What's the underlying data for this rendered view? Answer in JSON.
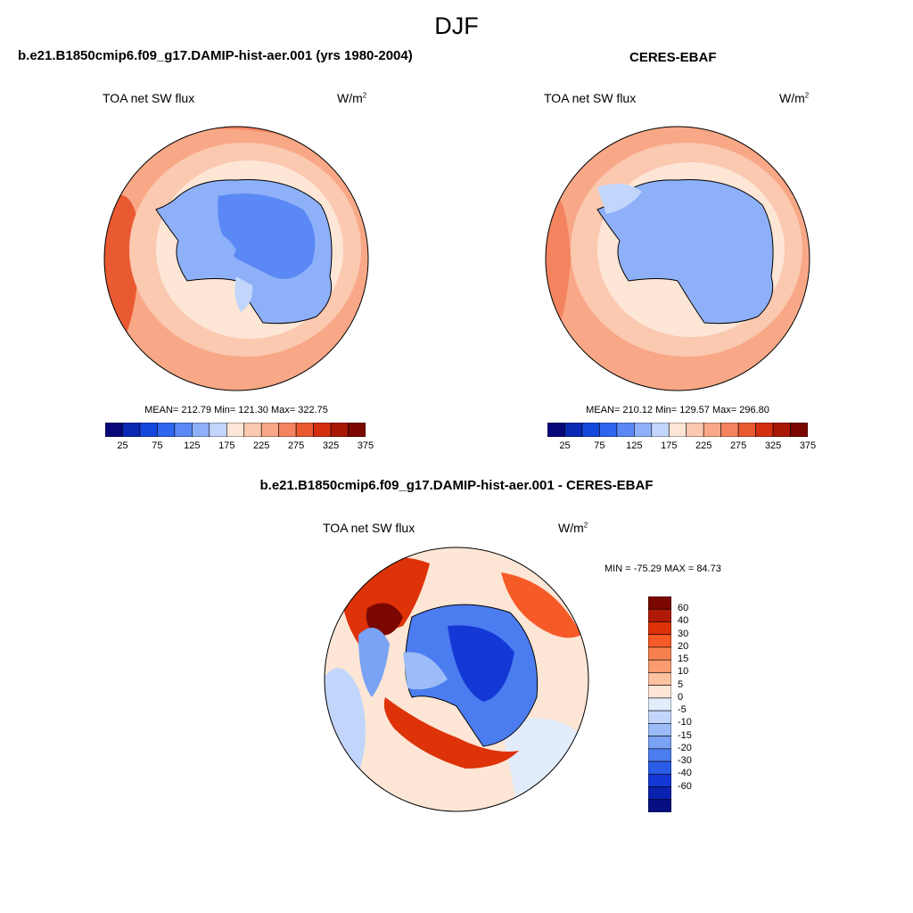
{
  "figure_title": "DJF",
  "panels": [
    {
      "title": "b.e21.B1850cmip6.f09_g17.DAMIP-hist-aer.001 (yrs 1980-2004)",
      "field_label": "TOA net SW flux",
      "units": "W/m",
      "units_exp": "2",
      "stats_text": "MEAN= 212.79  Min= 121.30  Max= 322.75"
    },
    {
      "title": "CERES-EBAF",
      "field_label": "TOA net SW flux",
      "units": "W/m",
      "units_exp": "2",
      "stats_text": "MEAN= 210.12  Min= 129.57  Max= 296.80"
    }
  ],
  "abs_colorbar": {
    "colors": [
      "#08087a",
      "#0b28b4",
      "#1448dc",
      "#2f66f0",
      "#5a88f5",
      "#8eb0f8",
      "#c2d6fb",
      "#fde6d6",
      "#fbc8b0",
      "#f8a886",
      "#f48360",
      "#ea5a32",
      "#d42e10",
      "#a91807",
      "#7a0800"
    ],
    "ticks": [
      "25",
      "75",
      "125",
      "175",
      "225",
      "275",
      "325",
      "375"
    ]
  },
  "diff_panel": {
    "title": "b.e21.B1850cmip6.f09_g17.DAMIP-hist-aer.001 - CERES-EBAF",
    "field_label": "TOA net SW flux",
    "units": "W/m",
    "units_exp": "2",
    "minmax_text": "MIN = -75.29 MAX =  84.73"
  },
  "diff_colorbar": {
    "colors": [
      "#7a0800",
      "#b01a05",
      "#de3208",
      "#f65a26",
      "#f8814e",
      "#fa9c70",
      "#fcc2a2",
      "#fde6d6",
      "#e2ecfb",
      "#c2d6fb",
      "#9bbcf8",
      "#7aa2f5",
      "#4c7df0",
      "#2b5ce8",
      "#1438d6",
      "#0a22b0",
      "#050f82"
    ],
    "ticks": [
      "60",
      "40",
      "30",
      "20",
      "15",
      "10",
      "5",
      "0",
      "-5",
      "-10",
      "-15",
      "-20",
      "-30",
      "-40",
      "-60"
    ]
  }
}
